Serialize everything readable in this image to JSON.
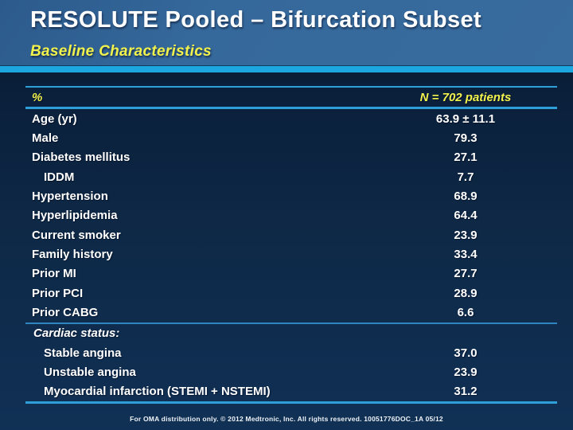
{
  "slide": {
    "title": "RESOLUTE Pooled – Bifurcation Subset",
    "subtitle": "Baseline Characteristics",
    "footer": "For OMA distribution only. © 2012 Medtronic, Inc. All rights reserved. 10051776DOC_1A 05/12"
  },
  "table": {
    "header": {
      "left": "%",
      "right": "N = 702 patients"
    },
    "rows": [
      {
        "label": "Age (yr)",
        "value": "63.9 ± 11.1",
        "indent": false,
        "italic": false,
        "divider_above": false
      },
      {
        "label": "Male",
        "value": "79.3",
        "indent": false,
        "italic": false,
        "divider_above": false
      },
      {
        "label": "Diabetes mellitus",
        "value": "27.1",
        "indent": false,
        "italic": false,
        "divider_above": false
      },
      {
        "label": "IDDM",
        "value": "7.7",
        "indent": true,
        "italic": false,
        "divider_above": false
      },
      {
        "label": "Hypertension",
        "value": "68.9",
        "indent": false,
        "italic": false,
        "divider_above": false
      },
      {
        "label": "Hyperlipidemia",
        "value": "64.4",
        "indent": false,
        "italic": false,
        "divider_above": false
      },
      {
        "label": "Current smoker",
        "value": "23.9",
        "indent": false,
        "italic": false,
        "divider_above": false
      },
      {
        "label": "Family history",
        "value": "33.4",
        "indent": false,
        "italic": false,
        "divider_above": false
      },
      {
        "label": "Prior MI",
        "value": "27.7",
        "indent": false,
        "italic": false,
        "divider_above": false
      },
      {
        "label": "Prior PCI",
        "value": "28.9",
        "indent": false,
        "italic": false,
        "divider_above": false
      },
      {
        "label": "Prior CABG",
        "value": "6.6",
        "indent": false,
        "italic": false,
        "divider_above": false
      },
      {
        "label": "Cardiac status:",
        "value": "",
        "indent": false,
        "italic": true,
        "divider_above": true
      },
      {
        "label": "Stable angina",
        "value": "37.0",
        "indent": true,
        "italic": false,
        "divider_above": false
      },
      {
        "label": "Unstable angina",
        "value": "23.9",
        "indent": true,
        "italic": false,
        "divider_above": false
      },
      {
        "label": "Myocardial infarction (STEMI + NSTEMI)",
        "value": "31.2",
        "indent": true,
        "italic": false,
        "divider_above": false
      }
    ]
  },
  "chart_data": {
    "type": "table",
    "title": "RESOLUTE Pooled – Bifurcation Subset: Baseline Characteristics",
    "columns": [
      "%",
      "N = 702 patients"
    ],
    "rows": [
      [
        "Age (yr)",
        "63.9 ± 11.1"
      ],
      [
        "Male",
        "79.3"
      ],
      [
        "Diabetes mellitus",
        "27.1"
      ],
      [
        "IDDM",
        "7.7"
      ],
      [
        "Hypertension",
        "68.9"
      ],
      [
        "Hyperlipidemia",
        "64.4"
      ],
      [
        "Current smoker",
        "23.9"
      ],
      [
        "Family history",
        "33.4"
      ],
      [
        "Prior MI",
        "27.7"
      ],
      [
        "Prior PCI",
        "28.9"
      ],
      [
        "Prior CABG",
        "6.6"
      ],
      [
        "Cardiac status:",
        ""
      ],
      [
        "Stable angina",
        "37.0"
      ],
      [
        "Unstable angina",
        "23.9"
      ],
      [
        "Myocardial infarction (STEMI + NSTEMI)",
        "31.2"
      ]
    ]
  },
  "colors": {
    "header_blue": "#35689b",
    "cyan": "#1ca7e0",
    "table_line": "#2e9fd9",
    "yellow": "#f2f24c",
    "background_navy": "#0e2a4b"
  }
}
